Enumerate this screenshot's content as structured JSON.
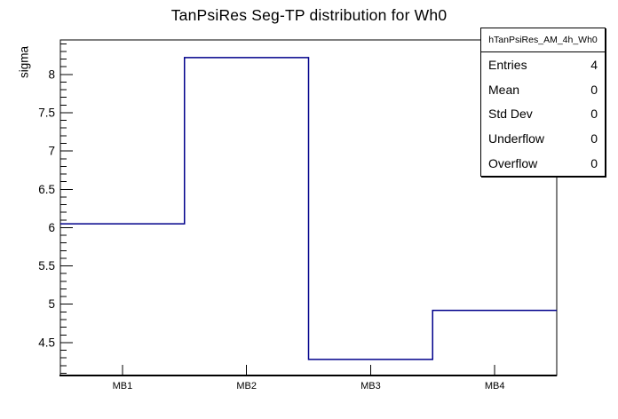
{
  "chart": {
    "title": "TanPsiRes Seg-TP distribution for Wh0",
    "ylabel": "sigma"
  },
  "stats": {
    "name": "hTanPsiRes_AM_4h_Wh0",
    "rows": [
      {
        "label": "Entries",
        "value": "4"
      },
      {
        "label": "Mean",
        "value": "0"
      },
      {
        "label": "Std Dev",
        "value": "0"
      },
      {
        "label": "Underflow",
        "value": "0"
      },
      {
        "label": "Overflow",
        "value": "0"
      }
    ]
  },
  "chart_data": {
    "type": "bar",
    "style": "step-outline-histogram",
    "title": "TanPsiRes Seg-TP distribution for Wh0",
    "xlabel": "",
    "ylabel": "sigma",
    "categories": [
      "MB1",
      "MB2",
      "MB3",
      "MB4"
    ],
    "values": [
      6.05,
      8.22,
      4.28,
      4.92
    ],
    "ylim": [
      4.07,
      8.45
    ],
    "y_major_ticks": [
      4.5,
      5,
      5.5,
      6,
      6.5,
      7,
      7.5,
      8
    ],
    "y_minor_step": 0.1,
    "grid": false,
    "legend": false,
    "line_color": "#00008b",
    "axis_color": "#000000",
    "background_color": "#ffffff"
  }
}
